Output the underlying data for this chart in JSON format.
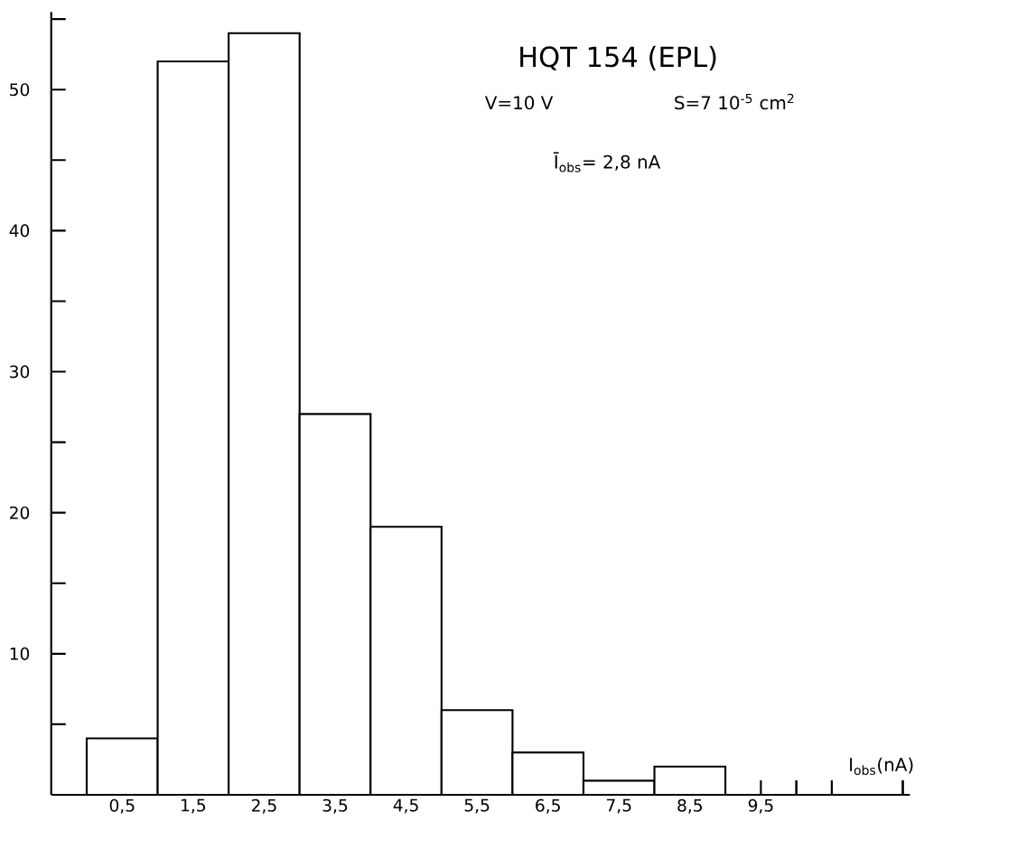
{
  "chart_data": {
    "type": "histogram",
    "title": "HQT 154 (EPL)",
    "annotations": [
      "V=10 V",
      "S=7 10$^{-5}$ cm$^{2}$",
      "Ī$_{obs}$= 2,8 nA"
    ],
    "xlabel": "I$_{obs}$(nA)",
    "bins": [
      0,
      1,
      2,
      3,
      4,
      5,
      6,
      7,
      8,
      9
    ],
    "values": [
      4,
      52,
      54,
      27,
      19,
      6,
      3,
      1,
      2
    ],
    "color": "#ffffff",
    "xlim": [
      -0.5,
      11.6
    ],
    "ylim": [
      0,
      55.5
    ],
    "xticks": [
      {
        "value": 0.5,
        "label": "0,5"
      },
      {
        "value": 1.5,
        "label": "1,5"
      },
      {
        "value": 2.5,
        "label": "2,5"
      },
      {
        "value": 3.5,
        "label": "3,5"
      },
      {
        "value": 4.5,
        "label": "4,5"
      },
      {
        "value": 5.5,
        "label": "5,5"
      },
      {
        "value": 6.5,
        "label": "6,5"
      },
      {
        "value": 7.5,
        "label": "7,5"
      },
      {
        "value": 8.5,
        "label": "8,5"
      },
      {
        "value": 9.5,
        "label": "9,5"
      },
      {
        "value": 10,
        "label": null
      },
      {
        "value": 10.5,
        "label": null
      },
      {
        "value": 11.5,
        "label": null
      }
    ],
    "yticks": [
      {
        "value": 5,
        "label": null
      },
      10,
      {
        "value": 15,
        "label": null
      },
      20,
      {
        "value": 25,
        "label": null
      },
      30,
      {
        "value": 35,
        "label": null
      },
      40,
      {
        "value": 45,
        "label": null
      },
      50,
      {
        "value": 55,
        "label": null
      }
    ],
    "grid": false
  }
}
